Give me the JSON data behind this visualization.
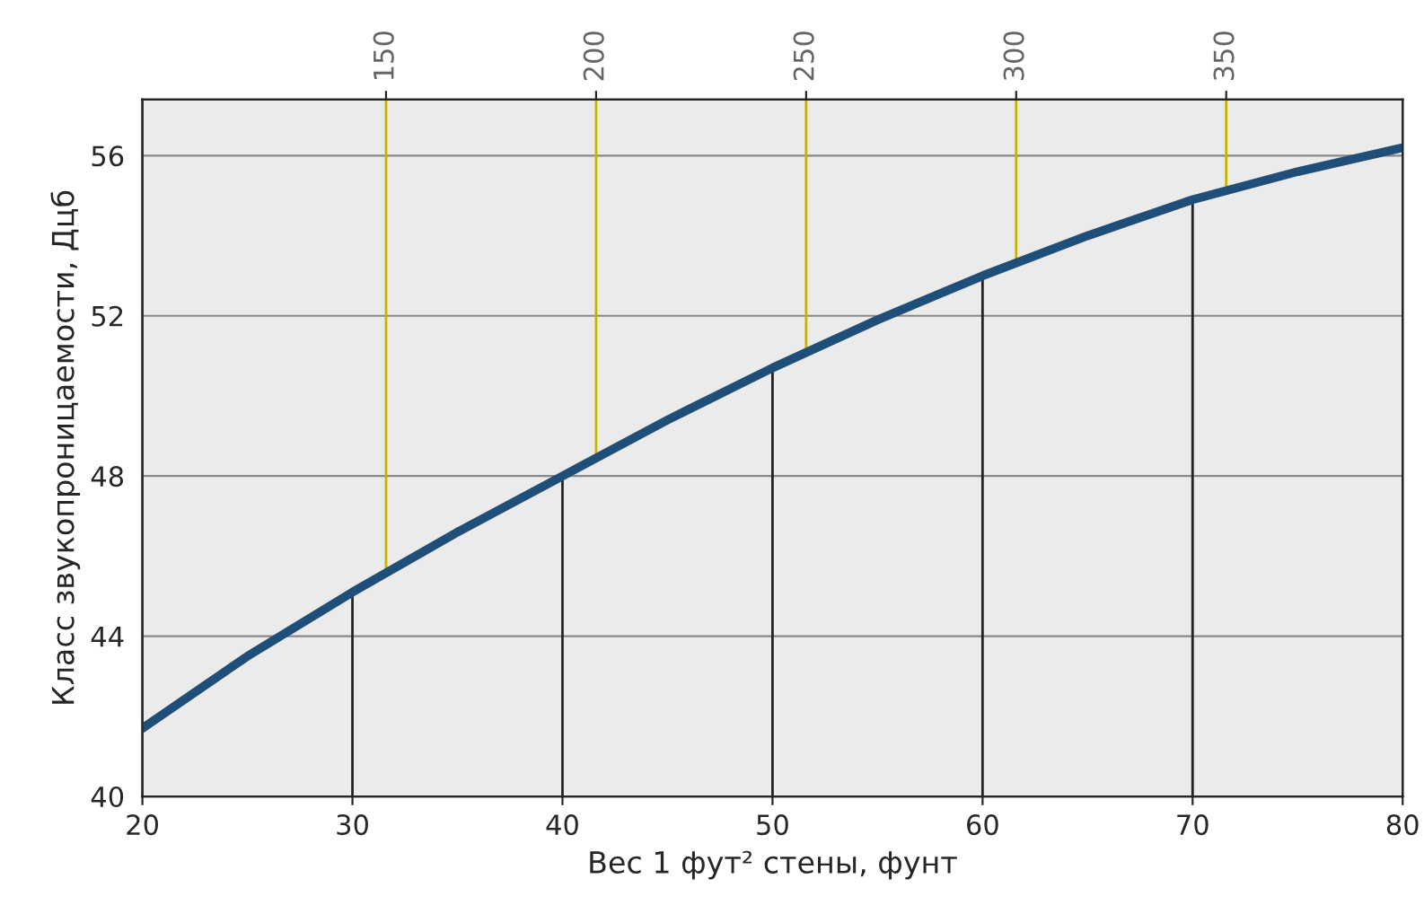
{
  "chart_data": {
    "type": "line",
    "xlabel": "Вес 1 фут² стены, фунт",
    "ylabel": "Класс звукопроницаемости, Дцб",
    "x": [
      20,
      25,
      30,
      35,
      40,
      45,
      50,
      55,
      60,
      65,
      70,
      75,
      80
    ],
    "series": [
      {
        "color": "#1f4e79",
        "values": [
          41.7,
          43.5,
          45.1,
          46.6,
          48.0,
          49.4,
          50.7,
          51.9,
          53.0,
          54.0,
          54.9,
          55.6,
          56.2
        ]
      }
    ],
    "xlim": [
      20,
      80
    ],
    "xticks": [
      20,
      30,
      40,
      50,
      60,
      70,
      80
    ],
    "ylim": [
      40,
      57.4
    ],
    "yticks": [
      40,
      44,
      48,
      52,
      56
    ],
    "x2lim": [
      92,
      392
    ],
    "x2ticks": [
      150,
      200,
      250,
      300,
      350
    ],
    "ref_lines": [
      {
        "axis": "x",
        "value": 30,
        "color": "#222222"
      },
      {
        "axis": "x",
        "value": 40,
        "color": "#222222"
      },
      {
        "axis": "x",
        "value": 50,
        "color": "#222222"
      },
      {
        "axis": "x",
        "value": 60,
        "color": "#222222"
      },
      {
        "axis": "x",
        "value": 70,
        "color": "#222222"
      },
      {
        "axis": "x2",
        "value": 150,
        "color": "#c8b400"
      },
      {
        "axis": "x2",
        "value": 200,
        "color": "#c8b400"
      },
      {
        "axis": "x2",
        "value": 250,
        "color": "#c8b400"
      },
      {
        "axis": "x2",
        "value": 300,
        "color": "#c8b400"
      },
      {
        "axis": "x2",
        "value": 350,
        "color": "#c8b400"
      }
    ],
    "grid": "y",
    "marker": "none",
    "line_style": "solid",
    "legend": false
  }
}
